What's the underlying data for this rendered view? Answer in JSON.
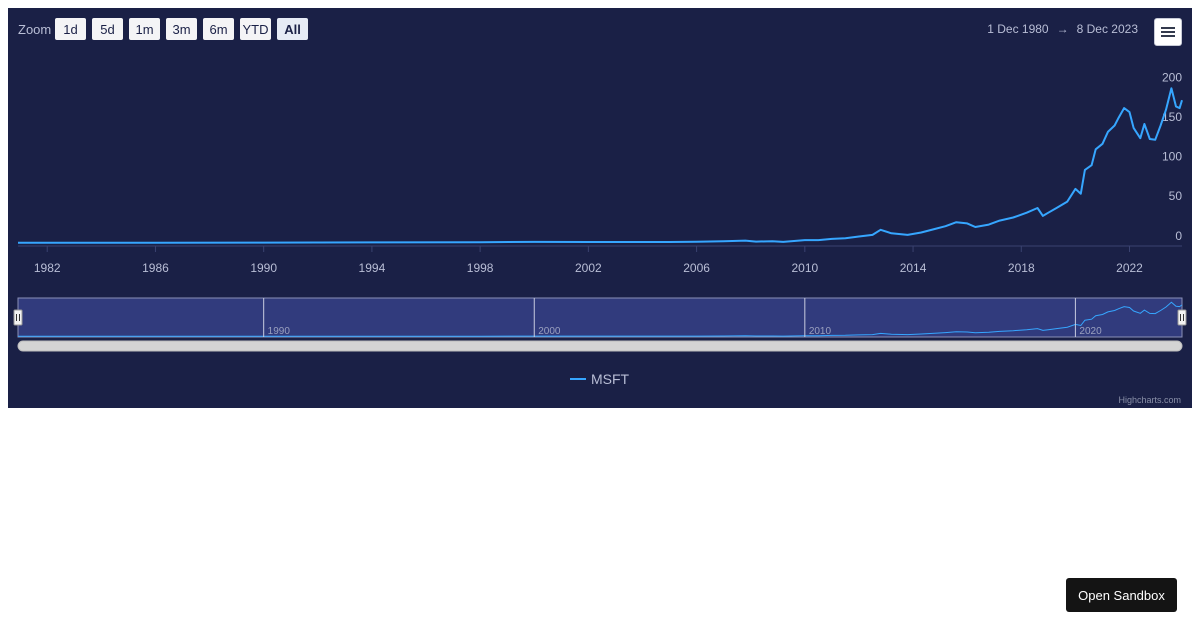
{
  "toolbar": {
    "zoom_label": "Zoom",
    "buttons": [
      "1d",
      "5d",
      "1m",
      "3m",
      "6m",
      "YTD",
      "All"
    ],
    "active_button": "All"
  },
  "date_range": {
    "from": "1 Dec 1980",
    "arrow": "→",
    "to": "8 Dec 2023"
  },
  "menu_icon": "hamburger-menu-icon",
  "legend": {
    "label": "MSFT"
  },
  "credits": "Highcharts.com",
  "sandbox_button": "Open Sandbox",
  "colors": {
    "background": "#1a2046",
    "series": "#36a6ff",
    "navigator_mask": "#313b7d",
    "text": "#b9bed6"
  },
  "chart_data": {
    "type": "line",
    "series": [
      {
        "name": "MSFT",
        "x": [
          1980.92,
          1986,
          1990,
          1994,
          1998,
          2000,
          2002,
          2004,
          2005,
          2006,
          2007,
          2007.8,
          2008.2,
          2008.8,
          2009.2,
          2010,
          2010.5,
          2011,
          2011.5,
          2012,
          2012.5,
          2012.8,
          2013.2,
          2013.8,
          2014.3,
          2014.8,
          2015.2,
          2015.6,
          2016,
          2016.3,
          2016.8,
          2017.2,
          2017.7,
          2018.2,
          2018.6,
          2018.8,
          2019,
          2019.3,
          2019.7,
          2020,
          2020.2,
          2020.35,
          2020.6,
          2020.75,
          2021,
          2021.2,
          2021.45,
          2021.6,
          2021.8,
          2022,
          2022.15,
          2022.4,
          2022.55,
          2022.75,
          2022.95,
          2023.15,
          2023.35,
          2023.55,
          2023.72,
          2023.85,
          2023.94
        ],
        "y": [
          0.1,
          0.1,
          0.3,
          0.5,
          0.8,
          1.2,
          1.0,
          1.0,
          1.1,
          1.4,
          2.0,
          2.8,
          1.5,
          2.0,
          1.2,
          3.5,
          3.5,
          5.0,
          5.8,
          8.0,
          10.0,
          16.5,
          12.0,
          10.0,
          13.0,
          17.5,
          21.0,
          26.0,
          24.5,
          20.0,
          23.0,
          28.0,
          32.0,
          38.0,
          44.0,
          34.0,
          38.0,
          44.0,
          52.0,
          68.0,
          62.0,
          92.0,
          98.0,
          118.0,
          125.0,
          140.0,
          148.0,
          158.0,
          170.0,
          165.0,
          145.0,
          132.0,
          150.0,
          131.0,
          130.0,
          148.0,
          168.0,
          195.0,
          172.0,
          170.0,
          180.0
        ]
      }
    ],
    "x_ticks": [
      1982,
      1986,
      1990,
      1994,
      1998,
      2002,
      2006,
      2010,
      2014,
      2018,
      2022
    ],
    "y_ticks": [
      0,
      50,
      100,
      150,
      200
    ],
    "xlim": [
      1980.92,
      2023.94
    ],
    "ylim": [
      -4,
      208
    ],
    "navigator_ticks": [
      1990,
      2000,
      2010,
      2020
    ],
    "legend_position": "bottom-center",
    "grid": false
  }
}
